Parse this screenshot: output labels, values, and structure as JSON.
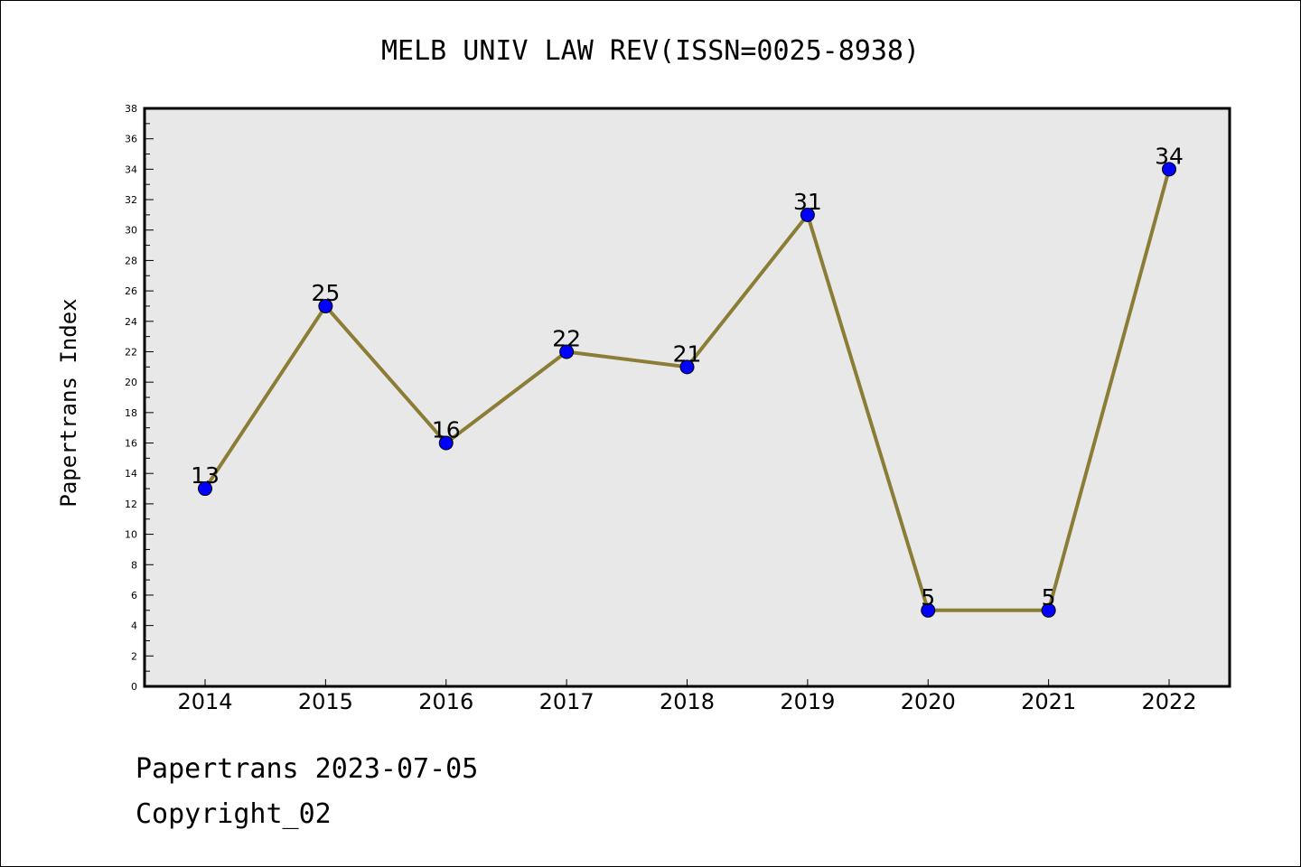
{
  "chart_data": {
    "type": "line",
    "title": "MELB UNIV LAW REV(ISSN=0025-8938)",
    "xlabel": "",
    "ylabel": "Papertrans Index",
    "categories": [
      "2014",
      "2015",
      "2016",
      "2017",
      "2018",
      "2019",
      "2020",
      "2021",
      "2022"
    ],
    "series": [
      {
        "values": [
          13,
          25,
          16,
          22,
          21,
          31,
          5,
          5,
          34
        ],
        "color": "#8b7d36",
        "marker_color": "#0000ff"
      }
    ],
    "data_labels": [
      "13",
      "25",
      "16",
      "22",
      "21",
      "31",
      "5",
      "5",
      "34"
    ],
    "ylim": [
      0,
      38
    ],
    "y_ticks": [
      "0",
      "2",
      "4",
      "6",
      "8",
      "10",
      "12",
      "14",
      "16",
      "18",
      "20",
      "22",
      "24",
      "26",
      "28",
      "30",
      "32",
      "34",
      "36",
      "38"
    ],
    "plot_background": "#e8e8e8",
    "grid": false,
    "legend": "none"
  },
  "footer": {
    "line1": "Papertrans 2023-07-05",
    "line2": "Copyright_02"
  }
}
